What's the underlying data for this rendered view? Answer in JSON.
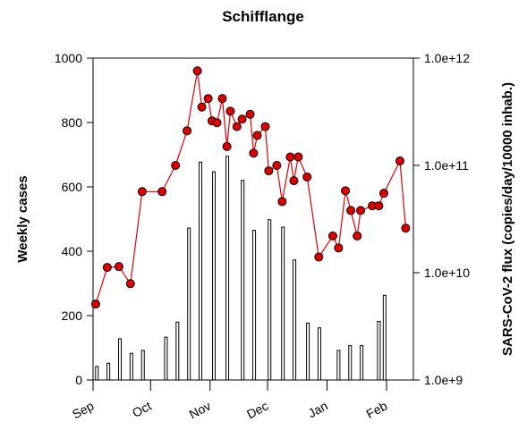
{
  "chart_data": {
    "type": "combo",
    "title": "Schifflange",
    "ylabel": "Weekly cases",
    "y2label": "SARS-CoV-2 flux (copies/day/10000 inhab.)",
    "xlim": [
      0,
      167
    ],
    "xticks": [
      {
        "value": 0,
        "label": "Sep"
      },
      {
        "value": 30,
        "label": "Oct"
      },
      {
        "value": 61,
        "label": "Nov"
      },
      {
        "value": 91,
        "label": "Dec"
      },
      {
        "value": 122,
        "label": "Jan"
      },
      {
        "value": 153,
        "label": "Feb"
      }
    ],
    "ylim": [
      0,
      1000
    ],
    "yticks": [
      0,
      200,
      400,
      600,
      800,
      1000
    ],
    "y2lim": [
      1000000000,
      1000000000000
    ],
    "y2scale": "log",
    "y2ticks": [
      {
        "value": 1000000000,
        "label": "1.0e+9"
      },
      {
        "value": 10000000000,
        "label": "1.0e+10"
      },
      {
        "value": 100000000000,
        "label": "1.0e+11"
      },
      {
        "value": 1000000000000,
        "label": "1.0e+12"
      }
    ],
    "series": [
      {
        "type": "bar",
        "color": "#ffffff",
        "x": [
          2,
          8,
          14,
          20,
          26,
          38,
          44,
          50,
          56,
          63,
          70,
          78,
          84,
          92,
          99,
          105,
          112,
          118,
          128,
          134,
          140,
          149,
          152
        ],
        "values": [
          42,
          52,
          128,
          83,
          92,
          133,
          180,
          472,
          677,
          647,
          695,
          620,
          465,
          498,
          475,
          373,
          177,
          162,
          92,
          107,
          107,
          182,
          263
        ]
      },
      {
        "type": "line",
        "axis": "y2",
        "color": "#e00000",
        "x": [
          1.4,
          7.4,
          13.5,
          19.5,
          25.6,
          36,
          43,
          49,
          54.4,
          56.7,
          60,
          62,
          64.6,
          67.4,
          69.8,
          71.6,
          75,
          77.7,
          81.9,
          83.7,
          85.6,
          89.8,
          91.6,
          95.8,
          98.6,
          102.8,
          104.7,
          107,
          111.6,
          117.7,
          125,
          128,
          131.6,
          134.4,
          137.7,
          139.5,
          145.6,
          149,
          151.6,
          160,
          163
        ],
        "values": [
          5100000000,
          11200000000,
          11400000000,
          7900000000,
          57000000000,
          57000000000,
          100000000000,
          210000000000,
          760000000000,
          350000000000,
          420000000000,
          260000000000,
          250000000000,
          420000000000,
          150000000000,
          320000000000,
          230000000000,
          270000000000,
          300000000000,
          130000000000,
          190000000000,
          230000000000,
          89000000000,
          100000000000,
          46000000000,
          120000000000,
          72000000000,
          120000000000,
          78000000000,
          14000000000,
          22000000000,
          17000000000,
          58000000000,
          38000000000,
          22000000000,
          38000000000,
          42000000000,
          42000000000,
          55000000000,
          110000000000,
          26000000000
        ]
      }
    ]
  }
}
